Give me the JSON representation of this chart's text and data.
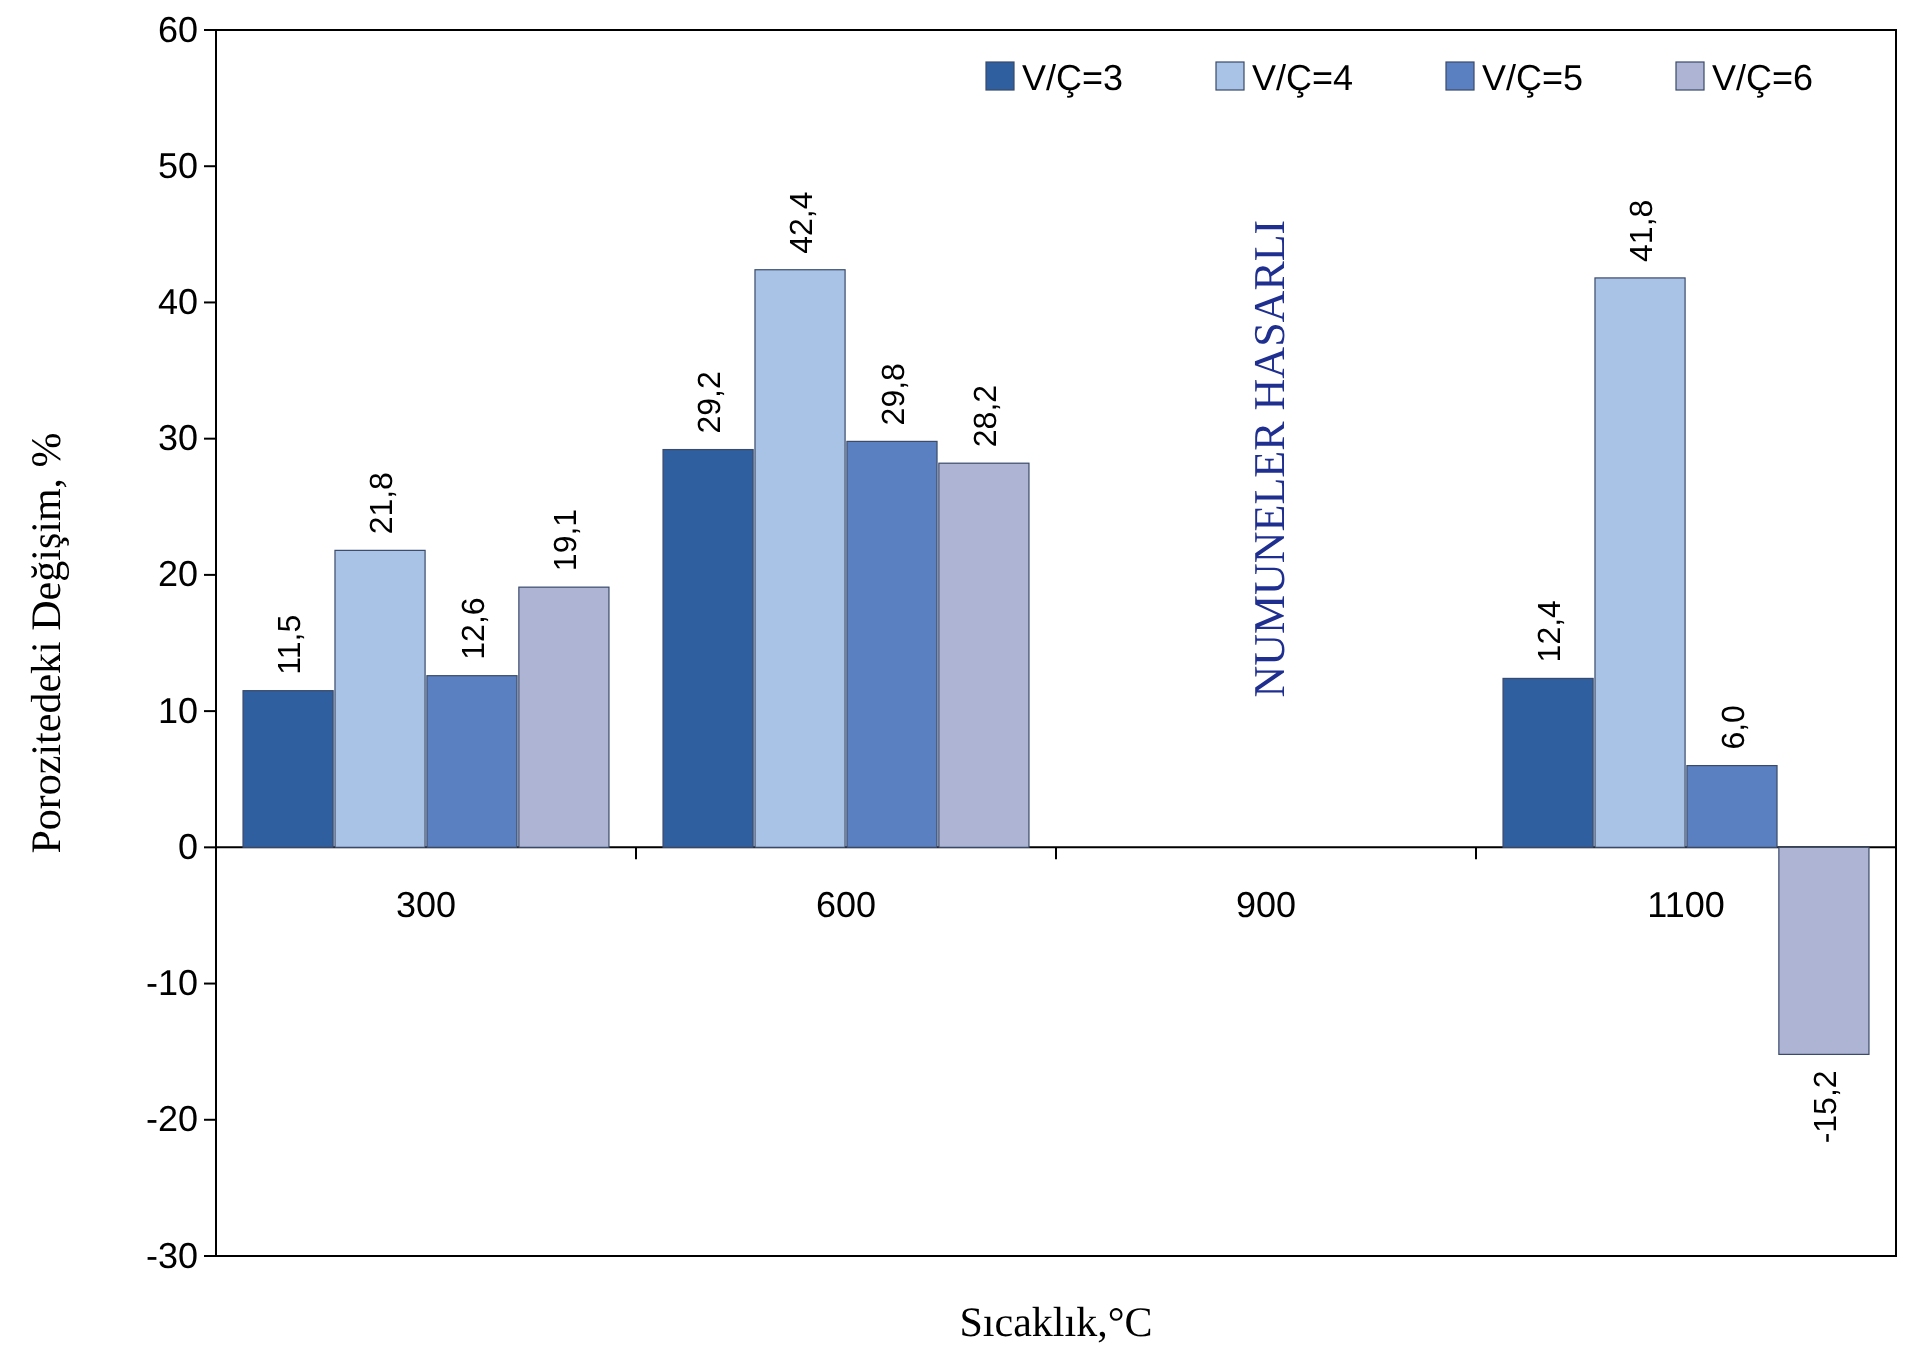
{
  "chart_data": {
    "type": "bar",
    "xlabel": "Sıcaklık,°C",
    "ylabel": "Porozitedeki Değişim, %",
    "categories": [
      "300",
      "600",
      "900",
      "1100"
    ],
    "series": [
      {
        "name": "V/Ç=3",
        "color": "#2f5f9f",
        "values": [
          11.5,
          29.2,
          null,
          12.4
        ],
        "value_labels": [
          "11,5",
          "29,2",
          null,
          "12,4"
        ]
      },
      {
        "name": "V/Ç=4",
        "color": "#a8c3e6",
        "values": [
          21.8,
          42.4,
          null,
          41.8
        ],
        "value_labels": [
          "21,8",
          "42,4",
          null,
          "41,8"
        ]
      },
      {
        "name": "V/Ç=5",
        "color": "#5b80c2",
        "values": [
          12.6,
          29.8,
          null,
          6.0
        ],
        "value_labels": [
          "12,6",
          "29,8",
          null,
          "6,0"
        ]
      },
      {
        "name": "V/Ç=6",
        "color": "#aeb4d4",
        "values": [
          19.1,
          28.2,
          null,
          -15.2
        ],
        "value_labels": [
          "19,1",
          "28,2",
          null,
          "-15,2"
        ]
      }
    ],
    "ylim": [
      -30,
      60
    ],
    "yticks": [
      -30,
      -20,
      -10,
      0,
      10,
      20,
      30,
      40,
      50,
      60
    ],
    "grid": false,
    "legend": "top right",
    "annotations": [
      "NUMUNELER HASARLI"
    ]
  }
}
